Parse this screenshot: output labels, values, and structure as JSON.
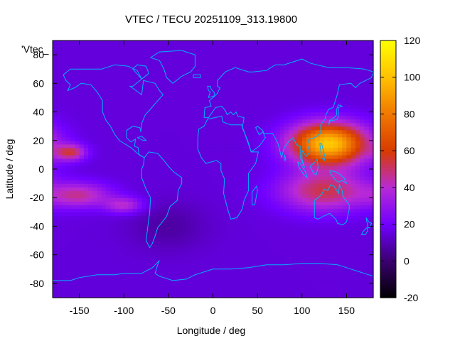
{
  "chart_data": {
    "type": "heatmap",
    "title": "VTEC / TECU 20251109_313.19800",
    "xlabel": "Longitude / deg",
    "ylabel": "Latitude / deg",
    "xlim": [
      -180,
      180
    ],
    "ylim": [
      -90,
      90
    ],
    "x_ticks": [
      -150,
      -100,
      -50,
      0,
      50,
      100,
      150
    ],
    "y_ticks": [
      -80,
      -60,
      -40,
      -20,
      0,
      20,
      40,
      60,
      80
    ],
    "colorbar": {
      "range": [
        -20,
        120
      ],
      "ticks": [
        -20,
        0,
        20,
        40,
        60,
        80,
        100,
        120
      ],
      "colormap": [
        "#000000",
        "#3a0070",
        "#7000ff",
        "#b82ad6",
        "#d83b00",
        "#f07800",
        "#ffc000",
        "#ffff00"
      ]
    },
    "series_label": "'Vtec_",
    "overlay": "coastlines",
    "coastline_color": "#00b0ff",
    "features": [
      {
        "name": "asia-pacific-peak",
        "lon": 130,
        "lat": 18,
        "lon_sigma": 30,
        "lat_sigma": 10,
        "value": 88
      },
      {
        "name": "south-of-equator-max",
        "lon": 125,
        "lat": -15,
        "lon_sigma": 35,
        "lat_sigma": 10,
        "value": 38
      },
      {
        "name": "pacific-northern-crest",
        "lon": -160,
        "lat": 12,
        "lon_sigma": 12,
        "lat_sigma": 4,
        "value": 36
      },
      {
        "name": "pacific-southern-crest",
        "lon": -150,
        "lat": -18,
        "lon_sigma": 25,
        "lat_sigma": 6,
        "value": 30
      },
      {
        "name": "pacific-southern-crest-east",
        "lon": -100,
        "lat": -25,
        "lon_sigma": 15,
        "lat_sigma": 4,
        "value": 25
      },
      {
        "name": "nightside-trough",
        "lon": -50,
        "lat": -40,
        "lon_sigma": 30,
        "lat_sigma": 12,
        "value": -8
      }
    ],
    "background_value": 15
  }
}
